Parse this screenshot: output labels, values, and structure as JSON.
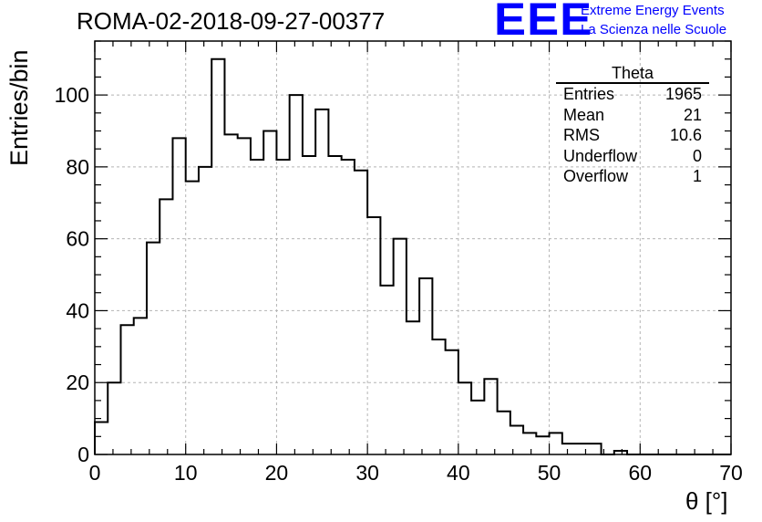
{
  "header": {
    "run_title": "ROMA-02-2018-09-27-00377",
    "logo_text": "EEE",
    "logo_line1": "Extreme Energy Events",
    "logo_line2": "La Scienza nelle Scuole",
    "logo_color": "#0000ff"
  },
  "stats": {
    "title": "Theta",
    "rows": [
      {
        "label": "Entries",
        "value": "1965"
      },
      {
        "label": "Mean",
        "value": "21"
      },
      {
        "label": "RMS",
        "value": "10.6"
      },
      {
        "label": "Underflow",
        "value": "0"
      },
      {
        "label": "Overflow",
        "value": "1"
      }
    ]
  },
  "chart_data": {
    "type": "bar",
    "style": "step-histogram",
    "xlabel": "θ [°]",
    "ylabel": "Entries/bin",
    "xlim": [
      0,
      70
    ],
    "ylim": [
      0,
      115
    ],
    "bin_width": 1.42857,
    "x_ticks": [
      0,
      10,
      20,
      30,
      40,
      50,
      60,
      70
    ],
    "y_ticks": [
      0,
      20,
      40,
      60,
      80,
      100
    ],
    "grid": true,
    "line_color": "#000000",
    "values": [
      9,
      20,
      36,
      38,
      59,
      71,
      88,
      76,
      80,
      110,
      89,
      88,
      82,
      90,
      82,
      100,
      83,
      96,
      83,
      82,
      79,
      66,
      47,
      60,
      37,
      49,
      32,
      29,
      20,
      15,
      21,
      12,
      8,
      6,
      5,
      6,
      3,
      3,
      3,
      0,
      1,
      0,
      0,
      0,
      0,
      0,
      0,
      0,
      0
    ]
  }
}
